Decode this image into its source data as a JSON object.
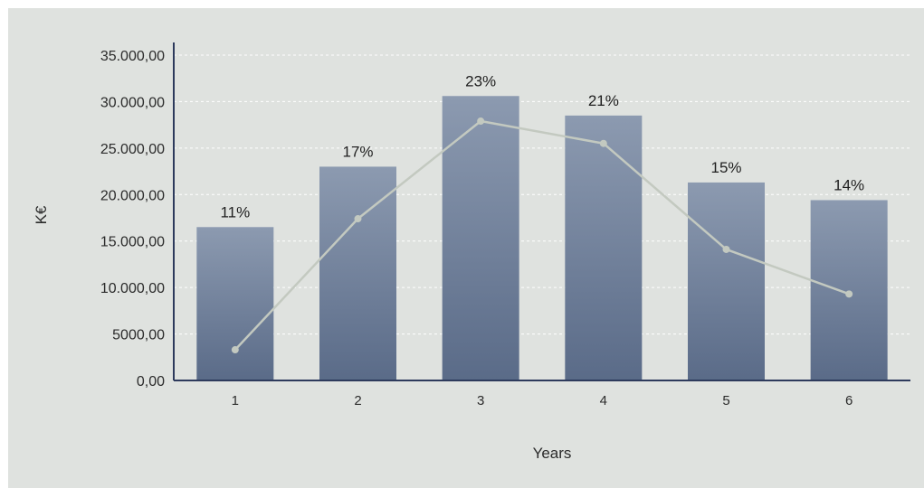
{
  "chart_data": {
    "type": "bar",
    "categories": [
      "1",
      "2",
      "3",
      "4",
      "5",
      "6"
    ],
    "series": [
      {
        "type": "bar",
        "values": [
          16500,
          23000,
          30600,
          28500,
          21300,
          19400
        ]
      },
      {
        "type": "line",
        "values": [
          3300,
          17400,
          27900,
          25500,
          14100,
          9300
        ]
      }
    ],
    "data_labels": [
      "11%",
      "17%",
      "23%",
      "21%",
      "15%",
      "14%"
    ],
    "xlabel": "Years",
    "ylabel": "K€",
    "ylim": [
      0,
      35000
    ],
    "yticks": [
      0,
      5000,
      10000,
      15000,
      20000,
      25000,
      30000,
      35000
    ],
    "ytick_labels": [
      "0,00",
      "5000,00",
      "10.000,00",
      "15.000,00",
      "20.000,00",
      "25.000,00",
      "30.000,00",
      "35.000,00"
    ],
    "grid": true,
    "colors": {
      "background": "#dfe2df",
      "bar_top": "#8c9ab0",
      "bar_bottom": "#5a6b88",
      "line": "#c3c9c0",
      "axis": "#2d3a5c",
      "grid": "#ffffff"
    }
  }
}
